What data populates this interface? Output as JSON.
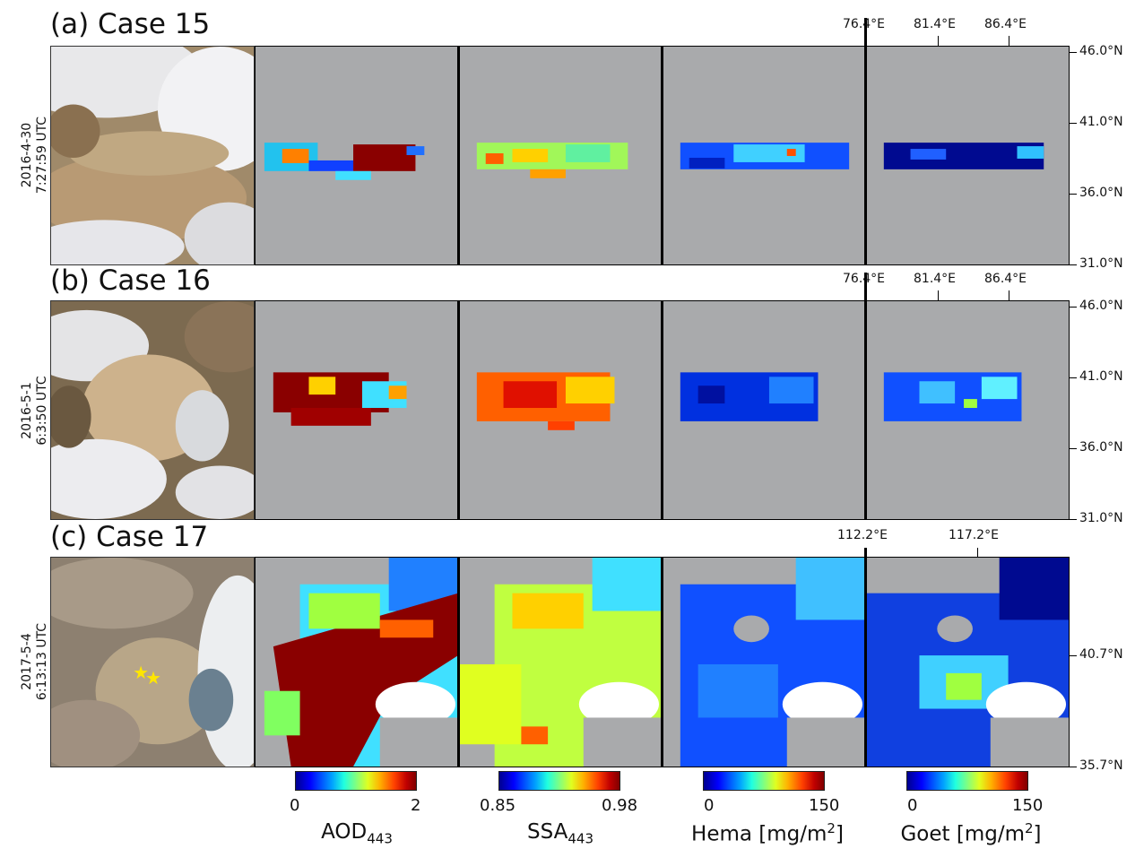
{
  "rows": [
    {
      "title": "(a) Case 15",
      "date": "2016-4-30",
      "time": "7:27:59 UTC",
      "lon_ticks": [
        "76.4°E",
        "81.4°E",
        "86.4°E"
      ],
      "lat_ticks": [
        "46.0°N",
        "41.0°N",
        "36.0°N",
        "31.0°N"
      ]
    },
    {
      "title": "(b) Case 16",
      "date": "2016-5-1",
      "time": "6:3:50 UTC",
      "lon_ticks": [
        "76.4°E",
        "81.4°E",
        "86.4°E"
      ],
      "lat_ticks": [
        "46.0°N",
        "41.0°N",
        "36.0°N",
        "31.0°N"
      ]
    },
    {
      "title": "(c) Case 17",
      "date": "2017-5-4",
      "time": "6:13:13 UTC",
      "lon_ticks": [
        "112.2°E",
        "117.2°E"
      ],
      "lat_ticks": [
        "40.7°N",
        "35.7°N"
      ]
    }
  ],
  "colorbars": [
    {
      "name": "AOD",
      "sub": "443",
      "suffix": "",
      "min": "0",
      "max": "2",
      "colormap": "jet"
    },
    {
      "name": "SSA",
      "sub": "443",
      "suffix": "",
      "min": "0.85",
      "max": "0.98",
      "colormap": "jet"
    },
    {
      "name": "Hema [mg/m",
      "sup": "2",
      "suffix": "]",
      "min": "0",
      "max": "150",
      "colormap": "jet"
    },
    {
      "name": "Goet [mg/m",
      "sup": "2",
      "suffix": "]",
      "min": "0",
      "max": "150",
      "colormap": "jet"
    }
  ],
  "colors": {
    "no_data": "#a9aaac",
    "marker": "#ffe600"
  },
  "markers": {
    "symbol": "star",
    "count": 2
  }
}
